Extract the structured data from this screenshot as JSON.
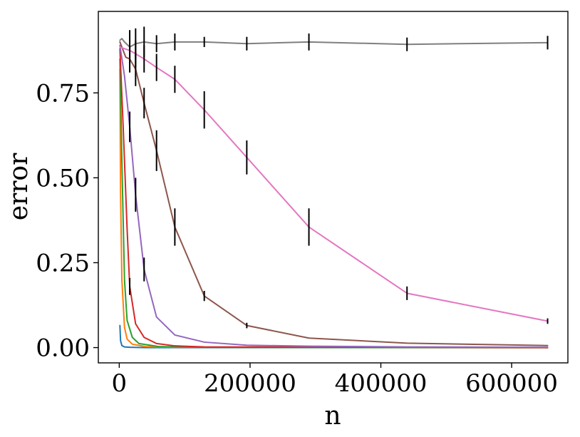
{
  "chart_data": {
    "type": "line",
    "title": "",
    "xlabel": "n",
    "ylabel": "error",
    "xlim": [
      -32000,
      686000
    ],
    "ylim": [
      -0.045,
      0.99
    ],
    "grid": false,
    "x_ticks": [
      0,
      200000,
      400000,
      600000
    ],
    "x_tick_labels": [
      "0",
      "200000",
      "400000",
      "600000"
    ],
    "y_ticks": [
      0.0,
      0.25,
      0.5,
      0.75
    ],
    "y_tick_labels": [
      "0.00",
      "0.25",
      "0.50",
      "0.75"
    ],
    "series": [
      {
        "color": "#1f77b4",
        "points": [
          [
            1000,
            0.065
          ],
          [
            2000,
            0.02
          ],
          [
            4000,
            0.006
          ],
          [
            8000,
            0.002
          ],
          [
            16000,
            0.001
          ],
          [
            40000,
            0.0
          ],
          [
            655000,
            0.0
          ]
        ],
        "errors": []
      },
      {
        "color": "#ff7f0e",
        "points": [
          [
            1000,
            0.82
          ],
          [
            2000,
            0.45
          ],
          [
            4000,
            0.2
          ],
          [
            8000,
            0.06
          ],
          [
            12000,
            0.025
          ],
          [
            20000,
            0.01
          ],
          [
            40000,
            0.003
          ],
          [
            80000,
            0.001
          ],
          [
            655000,
            0.0
          ]
        ],
        "errors": []
      },
      {
        "color": "#2ca02c",
        "points": [
          [
            1000,
            0.85
          ],
          [
            4000,
            0.55
          ],
          [
            8000,
            0.2
          ],
          [
            12000,
            0.08
          ],
          [
            20000,
            0.03
          ],
          [
            30000,
            0.012
          ],
          [
            60000,
            0.003
          ],
          [
            120000,
            0.001
          ],
          [
            655000,
            0.0
          ]
        ],
        "errors": []
      },
      {
        "color": "#d62728",
        "points": [
          [
            1000,
            0.88
          ],
          [
            6000,
            0.65
          ],
          [
            12000,
            0.35
          ],
          [
            16000,
            0.18
          ],
          [
            25000,
            0.07
          ],
          [
            38000,
            0.03
          ],
          [
            57000,
            0.012
          ],
          [
            85000,
            0.005
          ],
          [
            130000,
            0.002
          ],
          [
            655000,
            0.0
          ]
        ],
        "errors": [
          [
            16000,
            0.025
          ]
        ]
      },
      {
        "color": "#9467bd",
        "points": [
          [
            1000,
            0.89
          ],
          [
            8000,
            0.8
          ],
          [
            16000,
            0.65
          ],
          [
            25000,
            0.45
          ],
          [
            38000,
            0.23
          ],
          [
            57000,
            0.09
          ],
          [
            85000,
            0.037
          ],
          [
            130000,
            0.016
          ],
          [
            195000,
            0.007
          ],
          [
            290000,
            0.004
          ],
          [
            440000,
            0.002
          ],
          [
            655000,
            0.001
          ]
        ],
        "errors": [
          [
            16000,
            0.045
          ],
          [
            25000,
            0.05
          ],
          [
            38000,
            0.035
          ]
        ]
      },
      {
        "color": "#8c564b",
        "points": [
          [
            1000,
            0.9
          ],
          [
            5000,
            0.88
          ],
          [
            10000,
            0.855
          ],
          [
            16000,
            0.85
          ],
          [
            25000,
            0.82
          ],
          [
            38000,
            0.72
          ],
          [
            57000,
            0.58
          ],
          [
            85000,
            0.355
          ],
          [
            130000,
            0.152
          ],
          [
            195000,
            0.065
          ],
          [
            290000,
            0.028
          ],
          [
            440000,
            0.013
          ],
          [
            655000,
            0.006
          ]
        ],
        "errors": [
          [
            16000,
            0.04
          ],
          [
            25000,
            0.05
          ],
          [
            38000,
            0.045
          ],
          [
            57000,
            0.06
          ],
          [
            85000,
            0.055
          ],
          [
            130000,
            0.015
          ],
          [
            195000,
            0.008
          ]
        ]
      },
      {
        "color": "#e377c2",
        "points": [
          [
            1000,
            0.885
          ],
          [
            16000,
            0.875
          ],
          [
            25000,
            0.865
          ],
          [
            38000,
            0.85
          ],
          [
            57000,
            0.825
          ],
          [
            85000,
            0.79
          ],
          [
            130000,
            0.7
          ],
          [
            195000,
            0.56
          ],
          [
            290000,
            0.355
          ],
          [
            440000,
            0.16
          ],
          [
            655000,
            0.078
          ]
        ],
        "errors": [
          [
            16000,
            0.03
          ],
          [
            25000,
            0.04
          ],
          [
            38000,
            0.04
          ],
          [
            57000,
            0.04
          ],
          [
            85000,
            0.04
          ],
          [
            130000,
            0.055
          ],
          [
            195000,
            0.05
          ],
          [
            290000,
            0.055
          ],
          [
            440000,
            0.02
          ],
          [
            655000,
            0.008
          ]
        ]
      },
      {
        "color": "#7f7f7f",
        "points": [
          [
            1000,
            0.905
          ],
          [
            4000,
            0.91
          ],
          [
            8000,
            0.9
          ],
          [
            16000,
            0.885
          ],
          [
            25000,
            0.895
          ],
          [
            38000,
            0.9
          ],
          [
            57000,
            0.895
          ],
          [
            85000,
            0.9
          ],
          [
            130000,
            0.9
          ],
          [
            195000,
            0.895
          ],
          [
            290000,
            0.9
          ],
          [
            440000,
            0.893
          ],
          [
            655000,
            0.898
          ]
        ],
        "errors": [
          [
            16000,
            0.05
          ],
          [
            25000,
            0.045
          ],
          [
            38000,
            0.045
          ],
          [
            57000,
            0.025
          ],
          [
            85000,
            0.025
          ],
          [
            130000,
            0.015
          ],
          [
            195000,
            0.02
          ],
          [
            290000,
            0.025
          ],
          [
            440000,
            0.02
          ],
          [
            655000,
            0.02
          ]
        ]
      }
    ]
  }
}
